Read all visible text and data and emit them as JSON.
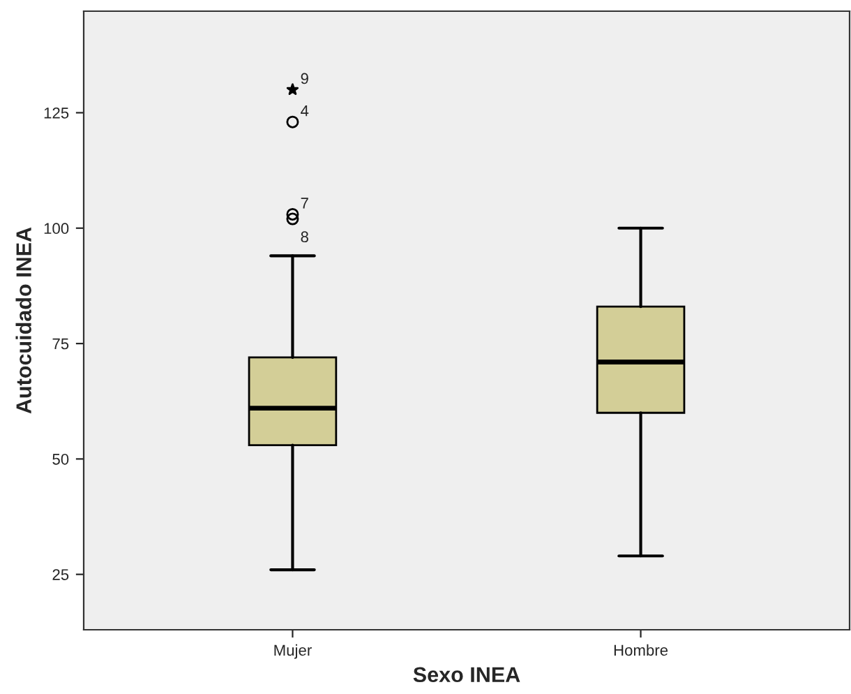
{
  "chart_data": {
    "type": "box",
    "xlabel": "Sexo INEA",
    "ylabel": "Autocuidado INEA",
    "categories": [
      "Mujer",
      "Hombre"
    ],
    "boxes": [
      {
        "low": 26,
        "q1": 53,
        "median": 61,
        "q3": 72,
        "high": 94
      },
      {
        "low": 29,
        "q1": 60,
        "median": 71,
        "q3": 83,
        "high": 100
      }
    ],
    "color": "#d3ce97",
    "series": [
      {
        "type": "scatter",
        "marker": "star",
        "color": "#000000",
        "x": [
          "Mujer"
        ],
        "values": [
          130
        ]
      },
      {
        "type": "scatter",
        "marker": "circle",
        "color": "#000000",
        "x": [
          "Mujer",
          "Mujer",
          "Mujer"
        ],
        "values": [
          123,
          103,
          102
        ]
      }
    ],
    "annotations": [
      {
        "text": "9",
        "x": "Mujer",
        "y": 130
      },
      {
        "text": "4",
        "x": "Mujer",
        "y": 123
      },
      {
        "text": "7",
        "x": "Mujer",
        "y": 103
      },
      {
        "text": "8",
        "x": "Mujer",
        "y": 102
      }
    ],
    "ylim": [
      13,
      147
    ],
    "yticks": [
      25,
      50,
      75,
      100,
      125
    ],
    "grid": false
  }
}
